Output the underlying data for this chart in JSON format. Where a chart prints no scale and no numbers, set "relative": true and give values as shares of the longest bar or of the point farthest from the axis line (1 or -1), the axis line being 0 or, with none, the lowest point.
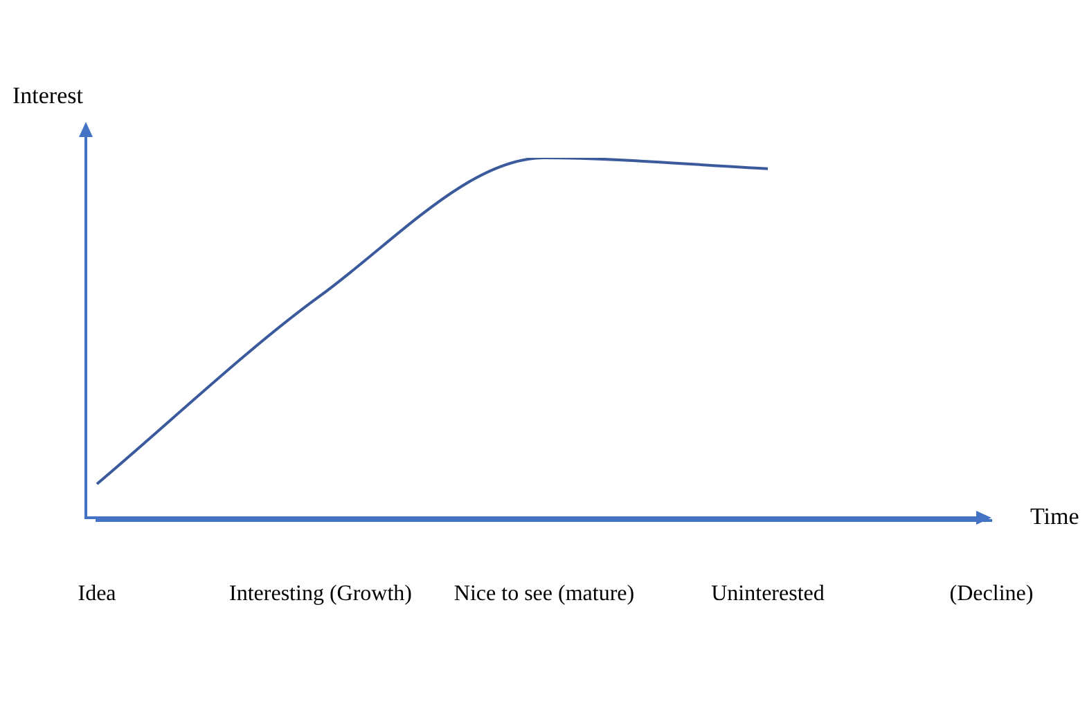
{
  "chart_data": {
    "type": "line",
    "relative": true,
    "xlabel": "Time",
    "ylabel": "Interest",
    "categories": [
      "Idea",
      "Interesting (Growth)",
      "Nice to see (mature)",
      "Uninterested",
      "(Decline)"
    ],
    "values": [
      0.1,
      0.62,
      1,
      0.97,
      null
    ],
    "color": "#3a5a9c"
  }
}
